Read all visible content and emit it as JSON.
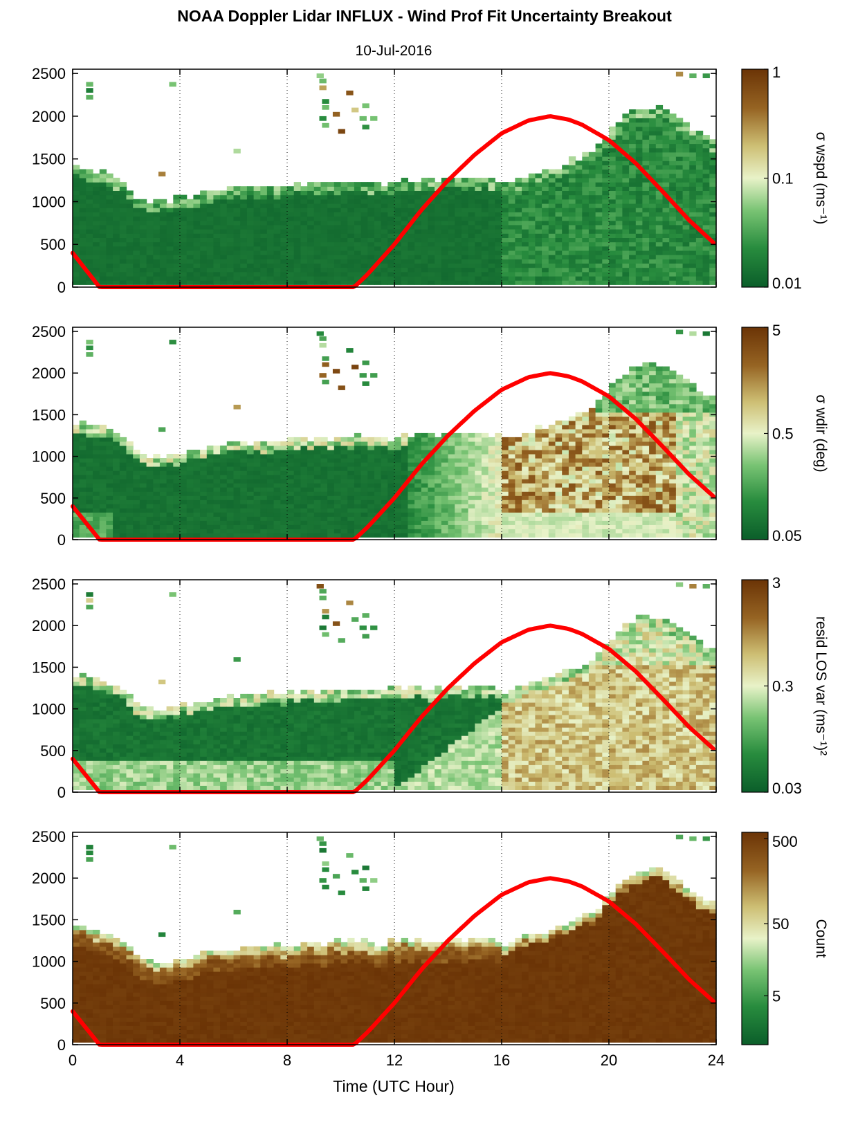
{
  "title": "NOAA Doppler Lidar INFLUX - Wind Prof Fit Uncertainty Breakout",
  "subtitle": "10-Jul-2016",
  "xlabel": "Time (UTC Hour)",
  "colors": {
    "dark_green": "#0b5e2a",
    "mid_green": "#2f9a45",
    "light_green": "#9ad48d",
    "pale": "#eef3cc",
    "tan": "#c9b46a",
    "brown": "#8a5a18",
    "dark_brown": "#6b3406",
    "sun_curve": "#ff0000"
  },
  "chart_data": [
    {
      "type": "heatmap",
      "name": "sigma-wspd",
      "colorbar_label": "σ wspd (ms⁻¹)",
      "colorbar_ticks": [
        "1",
        "0.1",
        "0.01"
      ],
      "colorbar_range": [
        0.01,
        1
      ],
      "colorbar_scale": "log",
      "x_ticks": [
        "0",
        "4",
        "8",
        "12",
        "16",
        "20",
        "24"
      ],
      "y_ticks": [
        "0",
        "500",
        "1000",
        "1500",
        "2000",
        "2500"
      ],
      "xlim": [
        0,
        24
      ],
      "ylim": [
        0,
        2550
      ],
      "grid": "vertical dotted",
      "field": "mostly dark green (~0.01-0.03) below boundary layer top; mixed greens after 16 UTC"
    },
    {
      "type": "heatmap",
      "name": "sigma-wdir",
      "colorbar_label": "σ wdir (deg)",
      "colorbar_ticks": [
        "5",
        "0.5",
        "0.05"
      ],
      "colorbar_range": [
        0.05,
        5
      ],
      "colorbar_scale": "log",
      "x_ticks": [
        "0",
        "4",
        "8",
        "12",
        "16",
        "20",
        "24"
      ],
      "y_ticks": [
        "0",
        "500",
        "1000",
        "1500",
        "2000",
        "2500"
      ],
      "xlim": [
        0,
        24
      ],
      "ylim": [
        0,
        2550
      ],
      "grid": "vertical dotted",
      "field": "dark green before ~13 UTC; pale green to brown (~1-5 deg) from 16-22 UTC"
    },
    {
      "type": "heatmap",
      "name": "resid-los-var",
      "colorbar_label": "resid LOS var (ms⁻¹)²",
      "colorbar_ticks": [
        "3",
        "0.3",
        "0.03"
      ],
      "colorbar_range": [
        0.03,
        3
      ],
      "colorbar_scale": "log",
      "x_ticks": [
        "0",
        "4",
        "8",
        "12",
        "16",
        "20",
        "24"
      ],
      "y_ticks": [
        "0",
        "500",
        "1000",
        "1500",
        "2000",
        "2500"
      ],
      "xlim": [
        0,
        24
      ],
      "ylim": [
        0,
        2550
      ],
      "grid": "vertical dotted",
      "field": "dark green aloft early, light near surface; tan/brown (~0.3-1) after 16 UTC"
    },
    {
      "type": "heatmap",
      "name": "count",
      "colorbar_label": "Count",
      "colorbar_ticks": [
        "500",
        "50",
        "5"
      ],
      "colorbar_range": [
        1,
        500
      ],
      "colorbar_scale": "log",
      "x_ticks": [
        "0",
        "4",
        "8",
        "12",
        "16",
        "20",
        "24"
      ],
      "y_ticks": [
        "0",
        "500",
        "1000",
        "1500",
        "2000",
        "2500"
      ],
      "xlim": [
        0,
        24
      ],
      "ylim": [
        0,
        2550
      ],
      "grid": "vertical dotted",
      "field": "dark brown (~500) throughout boundary layer; lighter near top edge"
    }
  ],
  "boundary_layer_top": {
    "x": [
      0,
      0.5,
      1,
      1.5,
      2,
      2.3,
      2.7,
      3.2,
      3.8,
      4.5,
      5.5,
      6.5,
      7.5,
      8.5,
      9.5,
      10.5,
      11.5,
      12.5,
      13.5,
      14.5,
      15.5,
      16.2,
      16.8,
      17.5,
      18.2,
      19,
      19.5,
      20,
      20.5,
      21,
      21.5,
      22,
      22.5,
      23,
      23.5,
      23.9
    ],
    "y": [
      1400,
      1370,
      1330,
      1280,
      1200,
      1060,
      1000,
      980,
      1010,
      1060,
      1110,
      1150,
      1160,
      1190,
      1200,
      1220,
      1200,
      1220,
      1230,
      1250,
      1260,
      1180,
      1260,
      1330,
      1400,
      1500,
      1600,
      1800,
      1950,
      2050,
      2100,
      2080,
      1980,
      1850,
      1750,
      1700
    ]
  },
  "sun_curve": {
    "name": "solar elevation",
    "x": [
      0,
      1,
      10.5,
      11,
      12,
      13,
      14,
      15,
      16,
      17,
      17.8,
      18.5,
      19,
      20,
      21,
      22,
      23,
      23.9
    ],
    "y": [
      400,
      0,
      0,
      150,
      500,
      900,
      1250,
      1550,
      1800,
      1950,
      2000,
      1960,
      1900,
      1720,
      1450,
      1120,
      780,
      520
    ]
  }
}
